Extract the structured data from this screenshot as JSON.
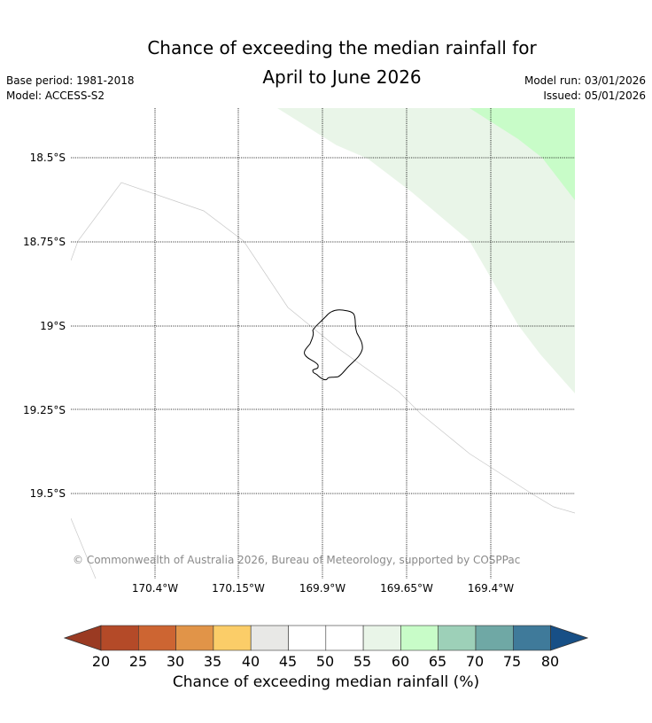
{
  "title_line1": "Chance of exceeding the median rainfall for",
  "title_line2": "April to June 2026",
  "meta": {
    "base_period": "Base period: 1981-2018",
    "model": "Model: ACCESS-S2",
    "model_run": "Model run: 03/01/2026",
    "issued": "Issued: 05/01/2026"
  },
  "lat_labels": [
    "18.5°S",
    "18.75°S",
    "19°S",
    "19.25°S",
    "19.5°S"
  ],
  "lon_labels": [
    "170.4°W",
    "170.15°W",
    "169.9°W",
    "169.65°W",
    "169.4°W"
  ],
  "copyright": "© Commonwealth of Australia 2026, Bureau of Meteorology, supported by COSPPac",
  "colorbar": {
    "label": "Chance of exceeding median rainfall (%)",
    "ticks": [
      "20",
      "25",
      "30",
      "35",
      "40",
      "45",
      "50",
      "55",
      "60",
      "65",
      "70",
      "75",
      "80"
    ],
    "under_color": "#9a3a22",
    "over_color": "#174f86",
    "colors": [
      "#b44a28",
      "#cd6532",
      "#e19448",
      "#fbcd68",
      "#e8e8e6",
      "#ffffff",
      "#ffffff",
      "#e9f5e8",
      "#c8fcc8",
      "#9dd0b8",
      "#6fa8a5",
      "#3f7a9a"
    ]
  },
  "region_colors": {
    "prob_55_60": "#e9f5e8",
    "prob_60_65": "#c8fcc8"
  }
}
